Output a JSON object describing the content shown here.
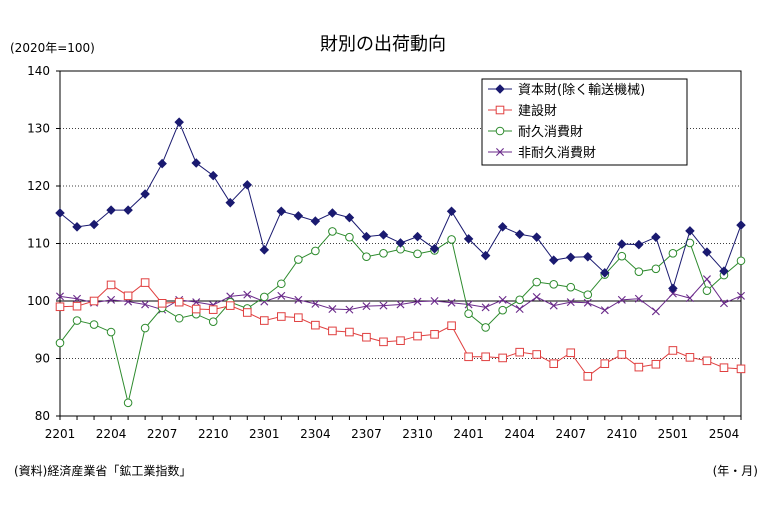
{
  "chart_data": {
    "type": "line",
    "title": "財別の出荷動向",
    "ylabel": "(2020年=100)",
    "xlabel": "(年・月)",
    "source": "(資料)経済産業省「鉱工業指数」",
    "ylim": [
      80,
      140
    ],
    "yticks": [
      80,
      90,
      100,
      110,
      120,
      130,
      140
    ],
    "grid": "y",
    "legend_position": "top-right",
    "x": [
      "2201",
      "2202",
      "2203",
      "2204",
      "2205",
      "2206",
      "2207",
      "2208",
      "2209",
      "2210",
      "2211",
      "2212",
      "2301",
      "2302",
      "2303",
      "2304",
      "2305",
      "2306",
      "2307",
      "2308",
      "2309",
      "2310",
      "2311",
      "2312",
      "2401",
      "2402",
      "2403",
      "2404",
      "2405",
      "2406",
      "2407",
      "2408",
      "2409",
      "2410",
      "2411",
      "2412",
      "2501",
      "2502",
      "2503",
      "2504",
      "2505"
    ],
    "xtick_labels": [
      "2201",
      "2204",
      "2207",
      "2210",
      "2301",
      "2304",
      "2307",
      "2310",
      "2401",
      "2404",
      "2407",
      "2410",
      "2501",
      "2504"
    ],
    "series": [
      {
        "name": "資本財(除く輸送機械)",
        "color": "#1a1a70",
        "marker": "diamond",
        "values": [
          115.3,
          112.9,
          113.3,
          115.8,
          115.8,
          118.6,
          123.9,
          131.1,
          124.0,
          121.8,
          117.1,
          120.2,
          108.9,
          115.6,
          114.8,
          113.9,
          115.3,
          114.5,
          111.2,
          111.5,
          110.1,
          111.2,
          109.1,
          115.6,
          110.8,
          107.9,
          112.9,
          111.6,
          111.1,
          107.1,
          107.6,
          107.7,
          104.9,
          109.9,
          109.8,
          111.1,
          102.2,
          112.2,
          108.5,
          105.2,
          113.2
        ]
      },
      {
        "name": "建設財",
        "color": "#e04040",
        "marker": "square",
        "values": [
          99.0,
          99.1,
          100.0,
          102.8,
          100.9,
          103.2,
          99.6,
          99.8,
          98.6,
          98.5,
          99.2,
          98.0,
          96.6,
          97.3,
          97.1,
          95.8,
          94.8,
          94.6,
          93.7,
          92.9,
          93.1,
          93.9,
          94.2,
          95.7,
          90.3,
          90.3,
          90.1,
          91.1,
          90.7,
          89.1,
          91.0,
          86.9,
          89.1,
          90.7,
          88.5,
          89.0,
          91.4,
          90.2,
          89.6,
          88.4,
          88.2
        ]
      },
      {
        "name": "耐久消費財",
        "color": "#2e8b2e",
        "marker": "circle",
        "values": [
          92.7,
          96.6,
          95.9,
          94.6,
          82.3,
          95.3,
          98.8,
          97.0,
          97.7,
          96.4,
          99.8,
          98.7,
          100.7,
          103.0,
          107.2,
          108.7,
          112.1,
          111.1,
          107.7,
          108.3,
          109.0,
          108.2,
          108.8,
          110.7,
          97.8,
          95.4,
          98.4,
          100.2,
          103.3,
          102.9,
          102.4,
          101.1,
          104.6,
          107.8,
          105.1,
          105.6,
          108.3,
          110.1,
          101.8,
          104.5,
          107.0
        ]
      },
      {
        "name": "非耐久消費財",
        "color": "#6a2a8a",
        "marker": "x",
        "values": [
          100.8,
          100.4,
          99.7,
          100.2,
          99.9,
          99.4,
          98.5,
          100.2,
          99.8,
          99.3,
          100.8,
          101.1,
          99.9,
          100.9,
          100.2,
          99.5,
          98.6,
          98.5,
          99.1,
          99.2,
          99.4,
          99.9,
          100.0,
          99.7,
          99.4,
          98.9,
          100.2,
          98.6,
          100.7,
          99.2,
          99.8,
          99.7,
          98.4,
          100.2,
          100.4,
          98.2,
          101.3,
          100.5,
          103.8,
          99.6,
          100.9
        ]
      }
    ]
  }
}
